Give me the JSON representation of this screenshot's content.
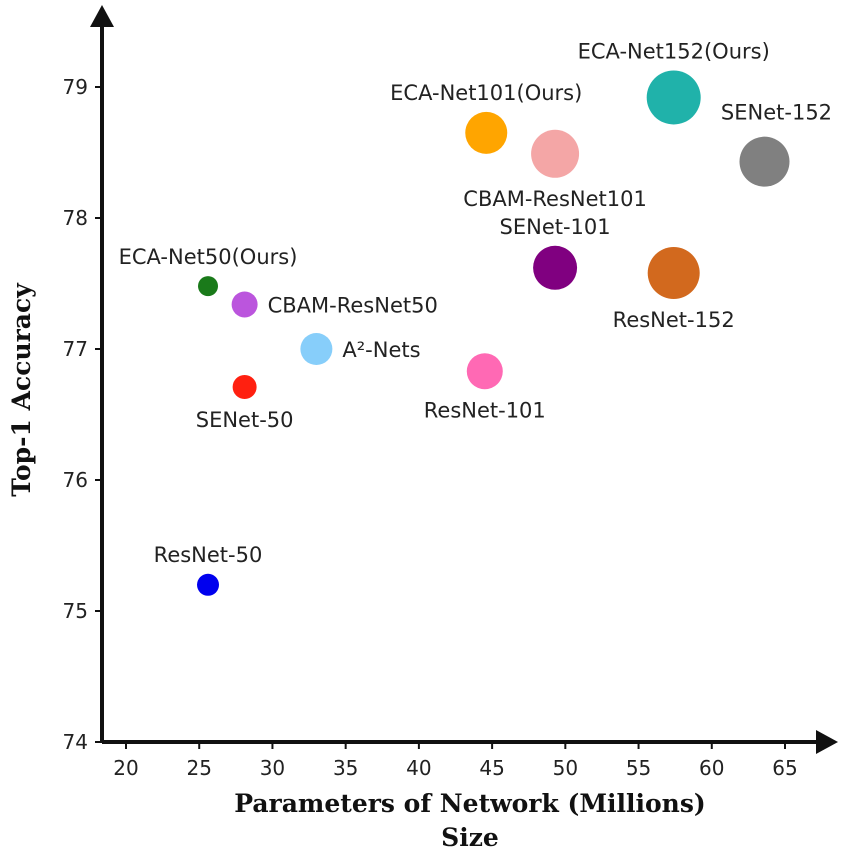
{
  "chart_data": {
    "type": "scatter",
    "title": "",
    "xlabel": "Parameters of Network (Millions)",
    "xlabel_line2": "Size",
    "ylabel": "Top-1 Accuracy",
    "xlim": [
      18,
      67
    ],
    "ylim": [
      74,
      79.8
    ],
    "xticks": [
      20,
      25,
      30,
      35,
      40,
      45,
      50,
      55,
      60,
      65
    ],
    "yticks": [
      74,
      75,
      76,
      77,
      78,
      79
    ],
    "grid": false,
    "points": [
      {
        "name": "ECA-Net152(Ours)",
        "x": 57.4,
        "y": 78.92,
        "color": "#20b2aa",
        "radius": 27,
        "label_position": "above"
      },
      {
        "name": "ECA-Net101(Ours)",
        "x": 44.6,
        "y": 78.65,
        "color": "#ffa500",
        "radius": 21,
        "label_position": "above"
      },
      {
        "name": "SENet-152",
        "x": 63.6,
        "y": 78.43,
        "color": "#808080",
        "radius": 25,
        "label_position": "above-right"
      },
      {
        "name": "CBAM-ResNet101",
        "x": 49.3,
        "y": 78.49,
        "color": "#f4a6a6",
        "radius": 24,
        "label_position": "below"
      },
      {
        "name": "SENet-101",
        "x": 49.3,
        "y": 77.62,
        "color": "#800080",
        "radius": 22,
        "label_position": "above"
      },
      {
        "name": "ResNet-152",
        "x": 57.4,
        "y": 77.58,
        "color": "#d2691e",
        "radius": 26,
        "label_position": "below"
      },
      {
        "name": "ECA-Net50(Ours)",
        "x": 25.6,
        "y": 77.48,
        "color": "#1a7a1a",
        "radius": 10,
        "label_position": "above"
      },
      {
        "name": "CBAM-ResNet50",
        "x": 28.1,
        "y": 77.34,
        "color": "#bb55dd",
        "radius": 13,
        "label_position": "right"
      },
      {
        "name": "A²-Nets",
        "x": 33.0,
        "y": 77.0,
        "color": "#87cefa",
        "radius": 16,
        "label_position": "right"
      },
      {
        "name": "ResNet-101",
        "x": 44.5,
        "y": 76.83,
        "color": "#ff69b4",
        "radius": 18,
        "label_position": "below"
      },
      {
        "name": "SENet-50",
        "x": 28.1,
        "y": 76.71,
        "color": "#ff2010",
        "radius": 12,
        "label_position": "below"
      },
      {
        "name": "ResNet-50",
        "x": 25.6,
        "y": 75.2,
        "color": "#0000ee",
        "radius": 11,
        "label_position": "above"
      }
    ]
  }
}
